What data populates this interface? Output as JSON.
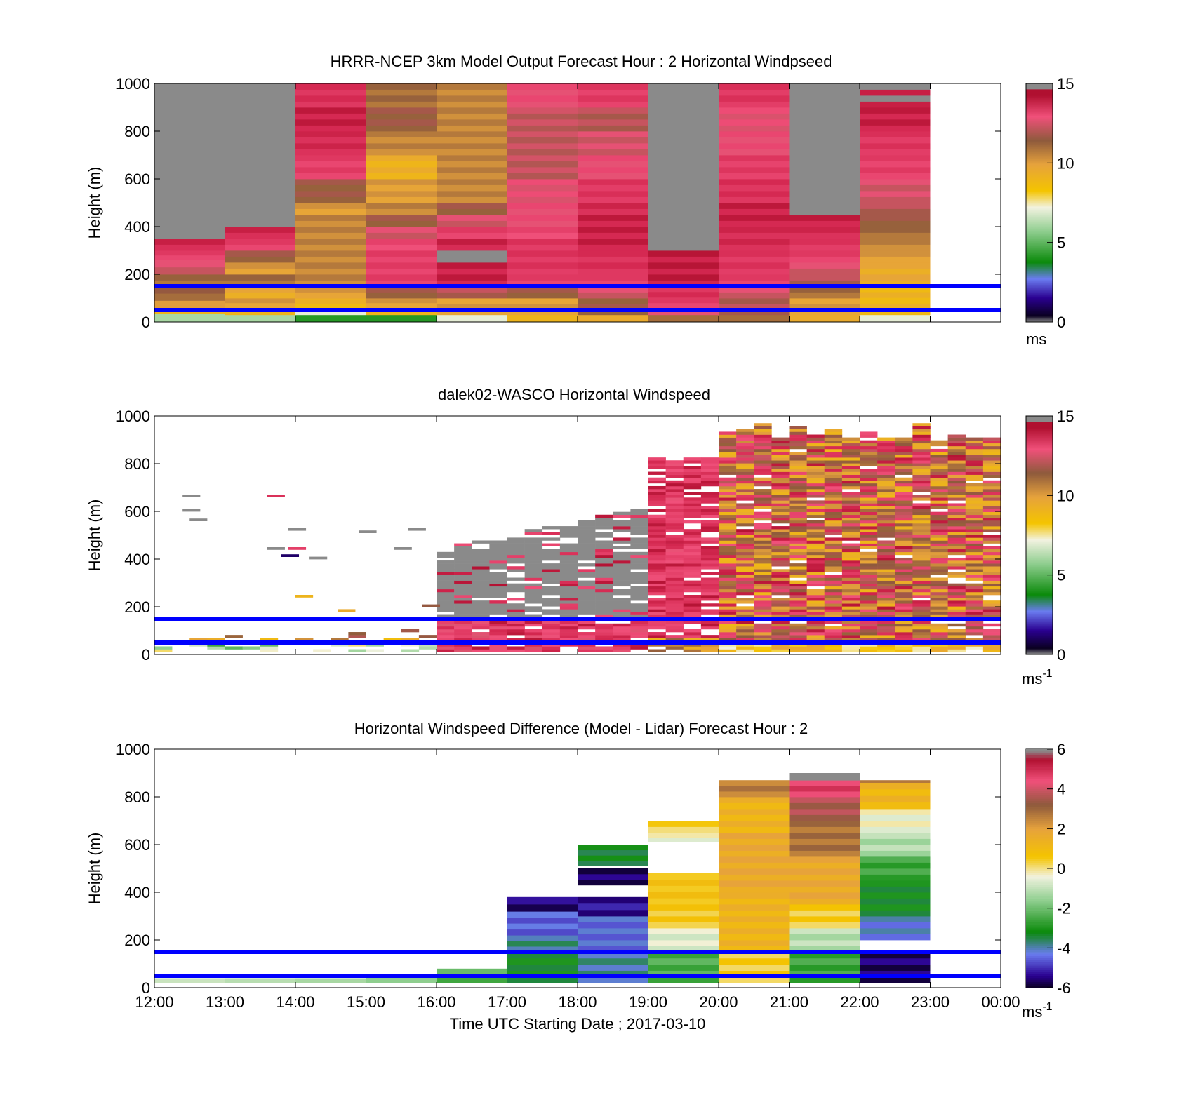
{
  "figure": {
    "xlabel": "Time UTC  Starting Date ; 2017-03-10",
    "x_ticks": [
      "12:00",
      "13:00",
      "14:00",
      "15:00",
      "16:00",
      "17:00",
      "18:00",
      "19:00",
      "20:00",
      "21:00",
      "22:00",
      "23:00",
      "00:00"
    ],
    "height_axis_label": "Height (m)",
    "y_ticks": [
      "0",
      "200",
      "400",
      "600",
      "800",
      "1000"
    ],
    "reference_lines_m": [
      50,
      150
    ],
    "reference_line_color": "#0000ff"
  },
  "chart_data": [
    {
      "type": "heatmap",
      "title": "HRRR-NCEP 3km Model Output   Forecast Hour : 2 Horizontal Windpseed",
      "ylabel": "Height (m)",
      "ylim": [
        0,
        1000
      ],
      "xlim": [
        "12:00",
        "00:00"
      ],
      "colorbar": {
        "range": [
          0,
          15
        ],
        "ticks": [
          "0",
          "5",
          "10",
          "15"
        ],
        "unit": "ms",
        "unit_superscript": ""
      },
      "hours": [
        "12:00",
        "13:00",
        "14:00",
        "15:00",
        "16:00",
        "17:00",
        "18:00",
        "19:00",
        "20:00",
        "21:00",
        "22:00"
      ],
      "columns": [
        {
          "segments": [
            [
              0,
              35,
              6
            ],
            [
              35,
              60,
              9
            ],
            [
              60,
              90,
              10
            ],
            [
              90,
              120,
              11
            ],
            [
              120,
              150,
              11.5
            ],
            [
              150,
              200,
              11
            ],
            [
              200,
              260,
              12.5
            ],
            [
              260,
              300,
              13.5
            ],
            [
              300,
              350,
              14.3
            ],
            [
              350,
              1000,
              15.5
            ]
          ]
        },
        {
          "segments": [
            [
              0,
              30,
              6
            ],
            [
              30,
              60,
              9
            ],
            [
              60,
              100,
              10
            ],
            [
              100,
              150,
              9.5
            ],
            [
              150,
              200,
              11
            ],
            [
              200,
              250,
              10
            ],
            [
              250,
              300,
              11.5
            ],
            [
              300,
              350,
              13.5
            ],
            [
              350,
              400,
              14.3
            ],
            [
              400,
              1000,
              15.5
            ]
          ]
        },
        {
          "segments": [
            [
              0,
              30,
              4
            ],
            [
              30,
              50,
              7
            ],
            [
              50,
              100,
              9
            ],
            [
              100,
              150,
              10
            ],
            [
              150,
              300,
              10.5
            ],
            [
              300,
              450,
              10.5
            ],
            [
              450,
              500,
              10
            ],
            [
              500,
              600,
              11.5
            ],
            [
              600,
              700,
              13.5
            ],
            [
              700,
              800,
              14.2
            ],
            [
              800,
              900,
              14.5
            ],
            [
              900,
              1000,
              14
            ]
          ]
        },
        {
          "segments": [
            [
              0,
              30,
              4
            ],
            [
              30,
              60,
              9
            ],
            [
              60,
              100,
              10
            ],
            [
              100,
              150,
              11.5
            ],
            [
              150,
              300,
              13.5
            ],
            [
              300,
              350,
              13.2
            ],
            [
              350,
              400,
              12.5
            ],
            [
              400,
              450,
              11.5
            ],
            [
              450,
              500,
              10.5
            ],
            [
              500,
              600,
              10
            ],
            [
              600,
              700,
              9.2
            ],
            [
              700,
              800,
              10.5
            ],
            [
              800,
              900,
              11.5
            ],
            [
              900,
              1000,
              11
            ]
          ]
        },
        {
          "segments": [
            [
              0,
              30,
              7
            ],
            [
              30,
              100,
              10
            ],
            [
              100,
              150,
              12
            ],
            [
              150,
              200,
              14.5
            ],
            [
              200,
              250,
              14.5
            ],
            [
              250,
              300,
              15.5
            ],
            [
              300,
              350,
              14.4
            ],
            [
              350,
              400,
              13.5
            ],
            [
              400,
              450,
              12.5
            ],
            [
              450,
              500,
              11.5
            ],
            [
              500,
              1000,
              10.5
            ]
          ]
        },
        {
          "segments": [
            [
              0,
              30,
              9
            ],
            [
              30,
              100,
              10
            ],
            [
              100,
              150,
              11.5
            ],
            [
              150,
              200,
              13.5
            ],
            [
              200,
              350,
              13.8
            ],
            [
              350,
              400,
              13.2
            ],
            [
              400,
              500,
              13
            ],
            [
              500,
              600,
              12.8
            ],
            [
              600,
              900,
              12.2
            ],
            [
              900,
              1000,
              13
            ]
          ]
        },
        {
          "segments": [
            [
              0,
              30,
              9.5
            ],
            [
              30,
              100,
              11.5
            ],
            [
              100,
              150,
              12.5
            ],
            [
              150,
              200,
              13.5
            ],
            [
              200,
              300,
              14
            ],
            [
              300,
              450,
              14.5
            ],
            [
              450,
              500,
              14.2
            ],
            [
              500,
              600,
              13.8
            ],
            [
              600,
              700,
              13
            ],
            [
              700,
              800,
              12.5
            ],
            [
              800,
              900,
              12
            ],
            [
              900,
              1000,
              13.6
            ]
          ]
        },
        {
          "segments": [
            [
              0,
              30,
              11
            ],
            [
              30,
              80,
              13
            ],
            [
              80,
              150,
              14
            ],
            [
              150,
              300,
              14.6
            ],
            [
              300,
              1000,
              15.5
            ]
          ]
        },
        {
          "segments": [
            [
              0,
              30,
              11
            ],
            [
              30,
              100,
              12
            ],
            [
              100,
              150,
              12.5
            ],
            [
              150,
              200,
              13.5
            ],
            [
              200,
              300,
              13.8
            ],
            [
              300,
              400,
              14.2
            ],
            [
              400,
              500,
              14.5
            ],
            [
              500,
              600,
              14
            ],
            [
              600,
              700,
              13.6
            ],
            [
              700,
              800,
              13
            ],
            [
              800,
              900,
              12.8
            ],
            [
              900,
              1000,
              13.8
            ]
          ]
        },
        {
          "segments": [
            [
              0,
              30,
              9.5
            ],
            [
              30,
              100,
              10
            ],
            [
              100,
              150,
              11
            ],
            [
              150,
              200,
              12
            ],
            [
              200,
              250,
              12.5
            ],
            [
              250,
              300,
              13.5
            ],
            [
              300,
              350,
              13.8
            ],
            [
              350,
              400,
              14.2
            ],
            [
              400,
              450,
              14.5
            ],
            [
              450,
              1000,
              15.5
            ]
          ]
        },
        {
          "segments": [
            [
              0,
              30,
              7
            ],
            [
              30,
              150,
              9
            ],
            [
              150,
              250,
              9.5
            ],
            [
              250,
              300,
              10
            ],
            [
              300,
              350,
              10.5
            ],
            [
              350,
              400,
              11
            ],
            [
              400,
              450,
              11.5
            ],
            [
              450,
              500,
              12
            ],
            [
              500,
              600,
              12.5
            ],
            [
              600,
              700,
              13.5
            ],
            [
              700,
              800,
              13.8
            ],
            [
              800,
              900,
              14.5
            ],
            [
              900,
              1000,
              14.8
            ]
          ]
        }
      ]
    },
    {
      "type": "heatmap",
      "title": "dalek02-WASCO  Horizontal Windspeed",
      "ylabel": "Height (m)",
      "ylim": [
        0,
        1000
      ],
      "xlim": [
        "12:00",
        "00:00"
      ],
      "colorbar": {
        "range": [
          0,
          15
        ],
        "ticks": [
          "0",
          "5",
          "10",
          "15"
        ],
        "unit": "ms",
        "unit_superscript": "-1"
      },
      "note_values": "per-timestep lidar profiles, ~10-min resolution; sparse and low before 16:00, gray (>15) blocks 16:00-19:00, pink/red 19:00-20:00, brown/orange/pink mix 20:00-00:00 reaching ~960 m"
    },
    {
      "type": "heatmap",
      "title": "Horizontal Windspeed Difference (Model - Lidar) Forecast Hour : 2",
      "ylabel": "Height (m)",
      "ylim": [
        0,
        1000
      ],
      "xlim": [
        "12:00",
        "00:00"
      ],
      "colorbar": {
        "range": [
          -6,
          6
        ],
        "ticks": [
          "-6",
          "-4",
          "-2",
          "0",
          "2",
          "4",
          "6"
        ],
        "unit": "ms",
        "unit_superscript": "-1"
      },
      "hours": [
        "12:00",
        "13:00",
        "14:00",
        "15:00",
        "16:00",
        "17:00",
        "18:00",
        "19:00",
        "20:00",
        "21:00",
        "22:00"
      ],
      "columns": [
        {
          "segments": [
            [
              20,
              40,
              -0.9
            ]
          ]
        },
        {
          "segments": [
            [
              20,
              40,
              -1.1
            ]
          ]
        },
        {
          "segments": [
            [
              20,
              40,
              -1.3
            ]
          ]
        },
        {
          "segments": [
            [
              20,
              50,
              -1.6
            ]
          ]
        },
        {
          "segments": [
            [
              20,
              80,
              -2.3
            ]
          ]
        },
        {
          "segments": [
            [
              20,
              150,
              -3.2
            ],
            [
              150,
              220,
              -3.8
            ],
            [
              220,
              320,
              -4.5
            ],
            [
              320,
              380,
              -5.5
            ]
          ]
        },
        {
          "segments": [
            [
              20,
              150,
              -3.9
            ],
            [
              150,
              300,
              -4.4
            ],
            [
              300,
              380,
              -5.3
            ],
            [
              430,
              500,
              -5.6
            ],
            [
              510,
              600,
              -3.3
            ]
          ]
        },
        {
          "segments": [
            [
              20,
              150,
              -2.4
            ],
            [
              150,
              250,
              -0.6
            ],
            [
              250,
              350,
              0.5
            ],
            [
              350,
              480,
              0.7
            ],
            [
              610,
              650,
              -0.4
            ],
            [
              650,
              700,
              0.3
            ]
          ]
        },
        {
          "segments": [
            [
              20,
              150,
              0.4
            ],
            [
              150,
              400,
              1.3
            ],
            [
              400,
              650,
              1.7
            ],
            [
              650,
              800,
              1.3
            ],
            [
              800,
              870,
              2.6
            ]
          ]
        },
        {
          "segments": [
            [
              20,
              150,
              -2.6
            ],
            [
              150,
              250,
              -1.1
            ],
            [
              250,
              350,
              0.4
            ],
            [
              350,
              550,
              1.7
            ],
            [
              550,
              700,
              2.8
            ],
            [
              700,
              800,
              3.6
            ],
            [
              800,
              870,
              4.7
            ],
            [
              870,
              900,
              6.3
            ]
          ]
        },
        {
          "segments": [
            [
              20,
              150,
              -5.6
            ],
            [
              200,
              300,
              -4.2
            ],
            [
              300,
              450,
              -3.2
            ],
            [
              450,
              550,
              -2.6
            ],
            [
              550,
              650,
              -1.2
            ],
            [
              650,
              750,
              -0.4
            ],
            [
              750,
              860,
              1.2
            ],
            [
              860,
              870,
              2.7
            ]
          ]
        }
      ]
    }
  ]
}
